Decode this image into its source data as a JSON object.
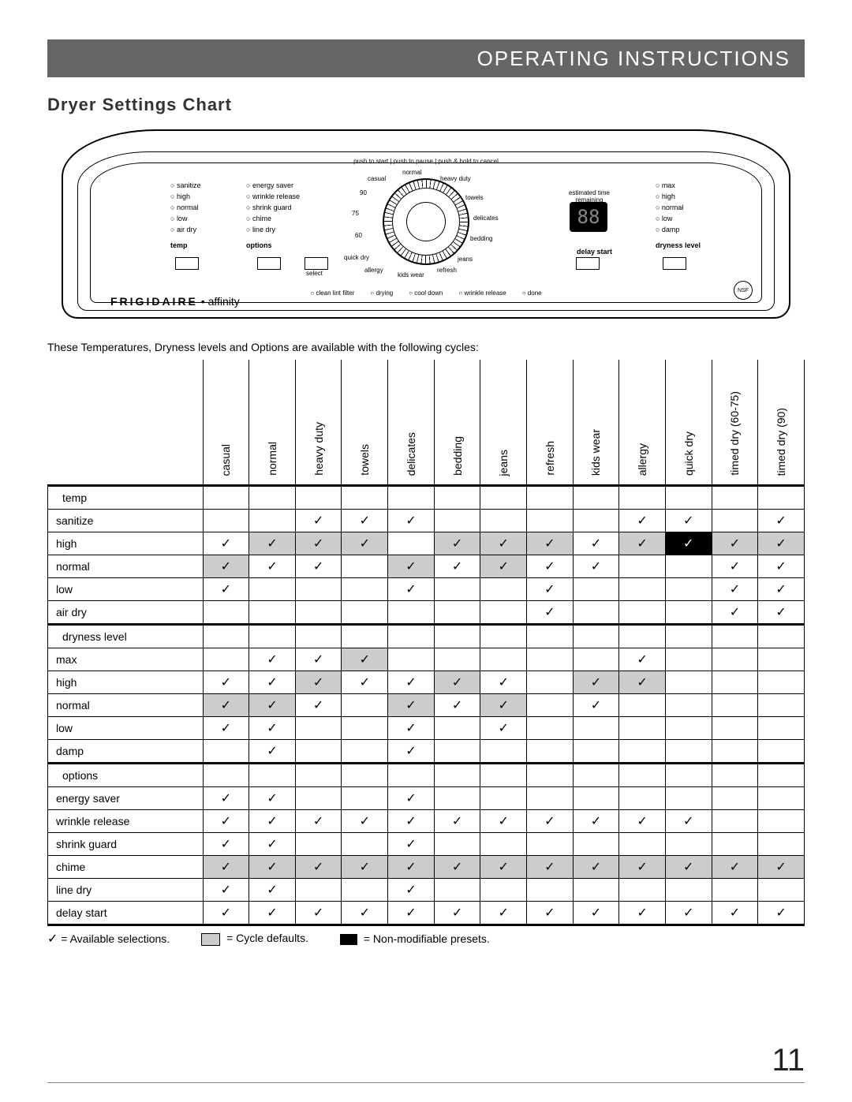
{
  "header": "OPERATING INSTRUCTIONS",
  "section_title": "Dryer Settings Chart",
  "intro": "These Temperatures, Dryness levels and Options are available with the following cycles:",
  "page_number": "11",
  "panel": {
    "top_text": "push to start | push to pause | push & hold to cancel",
    "brand_main": "FRIGIDAIRE",
    "brand_sep": " • ",
    "brand_sub": "affinity",
    "digit": "88",
    "digit_caption": "estimated time remaining",
    "nsf": "NSF",
    "select_label": "select",
    "temp_hdr": "temp",
    "temp_items": [
      "sanitize",
      "high",
      "normal",
      "low",
      "air dry"
    ],
    "options_hdr": "options",
    "options_items": [
      "energy saver",
      "wrinkle release",
      "shrink guard",
      "chime",
      "line dry"
    ],
    "dry_hdr": "dryness level",
    "dry_items": [
      "max",
      "high",
      "normal",
      "low",
      "damp"
    ],
    "delay_hdr": "delay start",
    "dial_labels": [
      "casual",
      "normal",
      "heavy duty",
      "towels",
      "delicates",
      "bedding",
      "jeans",
      "refresh",
      "kids wear",
      "allergy",
      "quick dry",
      "60",
      "75",
      "90"
    ],
    "status": [
      "clean lint filter",
      "drying",
      "cool down",
      "wrinkle release",
      "done"
    ]
  },
  "table": {
    "columns": [
      "casual",
      "normal",
      "heavy duty",
      "towels",
      "delicates",
      "bedding",
      "jeans",
      "refresh",
      "kids wear",
      "allergy",
      "quick dry",
      "timed dry (60-75)",
      "timed dry (90)"
    ],
    "groups": [
      {
        "name": "temp",
        "rows": [
          {
            "label": "sanitize",
            "cells": [
              0,
              0,
              1,
              1,
              1,
              0,
              0,
              0,
              0,
              1,
              1,
              0,
              1
            ]
          },
          {
            "label": "high",
            "cells": [
              1,
              2,
              2,
              2,
              0,
              2,
              2,
              2,
              1,
              2,
              3,
              2,
              2
            ]
          },
          {
            "label": "normal",
            "cells": [
              2,
              1,
              1,
              0,
              2,
              1,
              2,
              1,
              1,
              0,
              0,
              1,
              1
            ]
          },
          {
            "label": "low",
            "cells": [
              1,
              0,
              0,
              0,
              1,
              0,
              0,
              1,
              0,
              0,
              0,
              1,
              1
            ]
          },
          {
            "label": "air dry",
            "cells": [
              0,
              0,
              0,
              0,
              0,
              0,
              0,
              1,
              0,
              0,
              0,
              1,
              1
            ]
          }
        ]
      },
      {
        "name": "dryness level",
        "rows": [
          {
            "label": "max",
            "cells": [
              0,
              1,
              1,
              2,
              0,
              0,
              0,
              0,
              0,
              1,
              0,
              0,
              0
            ]
          },
          {
            "label": "high",
            "cells": [
              1,
              1,
              2,
              1,
              1,
              2,
              1,
              0,
              2,
              2,
              0,
              0,
              0
            ]
          },
          {
            "label": "normal",
            "cells": [
              2,
              2,
              1,
              0,
              2,
              1,
              2,
              0,
              1,
              0,
              0,
              0,
              0
            ]
          },
          {
            "label": "low",
            "cells": [
              1,
              1,
              0,
              0,
              1,
              0,
              1,
              0,
              0,
              0,
              0,
              0,
              0
            ]
          },
          {
            "label": "damp",
            "cells": [
              0,
              1,
              0,
              0,
              1,
              0,
              0,
              0,
              0,
              0,
              0,
              0,
              0
            ]
          }
        ]
      },
      {
        "name": "options",
        "rows": [
          {
            "label": "energy saver",
            "cells": [
              1,
              1,
              0,
              0,
              1,
              0,
              0,
              0,
              0,
              0,
              0,
              0,
              0
            ]
          },
          {
            "label": "wrinkle release",
            "cells": [
              1,
              1,
              1,
              1,
              1,
              1,
              1,
              1,
              1,
              1,
              1,
              0,
              0
            ]
          },
          {
            "label": "shrink guard",
            "cells": [
              1,
              1,
              0,
              0,
              1,
              0,
              0,
              0,
              0,
              0,
              0,
              0,
              0
            ]
          },
          {
            "label": "chime",
            "cells": [
              2,
              2,
              2,
              2,
              2,
              2,
              2,
              2,
              2,
              2,
              2,
              2,
              2
            ]
          },
          {
            "label": "line dry",
            "cells": [
              1,
              1,
              0,
              0,
              1,
              0,
              0,
              0,
              0,
              0,
              0,
              0,
              0
            ]
          },
          {
            "label": "delay start",
            "cells": [
              1,
              1,
              1,
              1,
              1,
              1,
              1,
              1,
              1,
              1,
              1,
              1,
              1
            ]
          }
        ]
      }
    ]
  },
  "legend": {
    "available": "= Available selections.",
    "defaults": "= Cycle defaults.",
    "presets": "= Non-modifiable presets."
  }
}
